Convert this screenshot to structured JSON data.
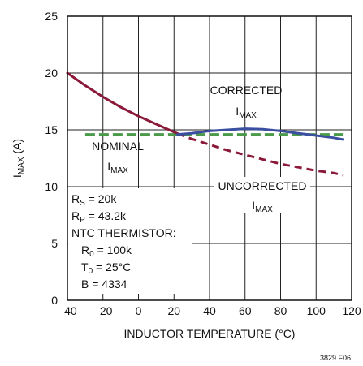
{
  "chart_data": {
    "type": "line",
    "xlabel": "INDUCTOR TEMPERATURE (°C)",
    "ylabel": {
      "main": "I",
      "sub": "MAX",
      "rest": " (A)"
    },
    "xlim": [
      -40,
      120
    ],
    "ylim": [
      0,
      25
    ],
    "x_ticks": [
      "–40",
      "–20",
      "0",
      "20",
      "40",
      "60",
      "80",
      "100",
      "120"
    ],
    "x_tick_values": [
      -40,
      -20,
      0,
      20,
      40,
      60,
      80,
      100,
      120
    ],
    "y_ticks": [
      "0",
      "5",
      "10",
      "15",
      "20",
      "25"
    ],
    "y_tick_values": [
      0,
      5,
      10,
      15,
      20,
      25
    ],
    "grid": true,
    "series": [
      {
        "name": "UNCORRECTED I_MAX",
        "color": "#8b1a3a",
        "style": "solid-then-dashed",
        "dash_from_x": 22,
        "x": [
          -40,
          -30,
          -20,
          -10,
          0,
          10,
          20,
          30,
          40,
          50,
          60,
          70,
          80,
          90,
          100,
          110,
          115
        ],
        "values": [
          20.0,
          18.9,
          17.9,
          17.0,
          16.2,
          15.5,
          14.8,
          14.2,
          13.7,
          13.2,
          12.8,
          12.4,
          12.0,
          11.7,
          11.4,
          11.2,
          11.0
        ]
      },
      {
        "name": "CORRECTED I_MAX",
        "color": "#3a4fa0",
        "style": "solid",
        "x": [
          22,
          30,
          40,
          50,
          60,
          70,
          80,
          90,
          100,
          110,
          115
        ],
        "values": [
          14.6,
          14.7,
          14.9,
          15.0,
          15.1,
          15.05,
          14.9,
          14.7,
          14.5,
          14.3,
          14.15
        ]
      },
      {
        "name": "NOMINAL I_MAX",
        "color": "#4a9a4a",
        "style": "dashed",
        "x": [
          -30,
          115
        ],
        "values": [
          14.6,
          14.6
        ]
      }
    ],
    "annotations": {
      "corrected": {
        "line1": "CORRECTED",
        "main": "I",
        "sub": "MAX"
      },
      "nominal": {
        "line1": "NOMINAL",
        "main": "I",
        "sub": "MAX"
      },
      "uncorrected": {
        "line1": "UNCORRECTED",
        "main": "I",
        "sub": "MAX"
      },
      "params": [
        {
          "main": "R",
          "sub": "S",
          "rest": " = 20k"
        },
        {
          "main": "R",
          "sub": "P",
          "rest": " = 43.2k"
        },
        {
          "main": "NTC THERMISTOR:",
          "sub": "",
          "rest": ""
        },
        {
          "main": "R",
          "sub": "0",
          "rest": " = 100k"
        },
        {
          "main": "T",
          "sub": "0",
          "rest": " = 25°C"
        },
        {
          "main": "B = 4334",
          "sub": "",
          "rest": ""
        }
      ]
    }
  },
  "figure_id": "3829 F06"
}
